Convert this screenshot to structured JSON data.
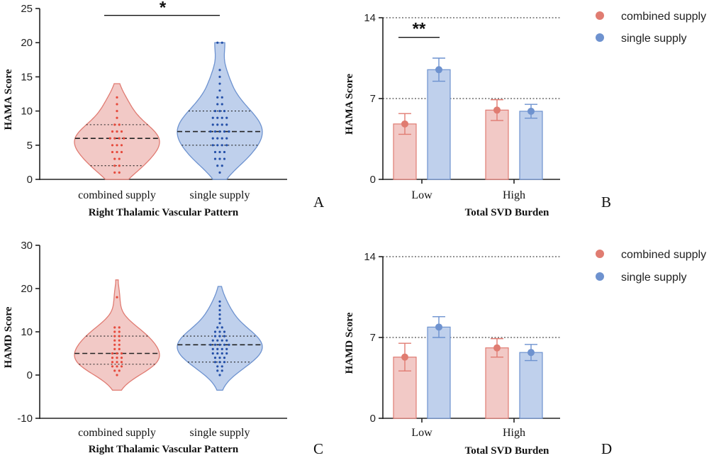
{
  "colors": {
    "combined_fill": "#f2c9c6",
    "combined_stroke": "#e07b72",
    "combined_dot": "#e64a3c",
    "combined_marker": "#e07c71",
    "single_fill": "#bfd0ec",
    "single_stroke": "#6d92cf",
    "single_dot": "#2550a8",
    "single_marker": "#6e92cf"
  },
  "legend_icon": "circle-marker",
  "chart_data": [
    {
      "panel": "A",
      "type": "violin",
      "xlabel": "Right Thalamic Vascular Pattern",
      "ylabel": "HAMA Score",
      "ylim": [
        0,
        25
      ],
      "yticks": [
        "0",
        "5",
        "10",
        "15",
        "20",
        "25"
      ],
      "categories": [
        "combined supply",
        "single supply"
      ],
      "series": [
        {
          "name": "combined supply",
          "range": [
            0,
            14
          ],
          "median": 6,
          "q1": 2,
          "q3": 8,
          "points": [
            1,
            1,
            2,
            2,
            3,
            3,
            4,
            4,
            4,
            5,
            5,
            5,
            6,
            6,
            6,
            6,
            7,
            7,
            7,
            8,
            8,
            9,
            10,
            11,
            12
          ]
        },
        {
          "name": "single supply",
          "range": [
            0,
            20
          ],
          "median": 7,
          "q1": 5,
          "q3": 10,
          "points": [
            1,
            2,
            2,
            3,
            3,
            3,
            4,
            4,
            4,
            5,
            5,
            5,
            5,
            6,
            6,
            6,
            6,
            7,
            7,
            7,
            7,
            7,
            8,
            8,
            8,
            8,
            9,
            9,
            9,
            9,
            10,
            10,
            10,
            11,
            11,
            12,
            12,
            13,
            14,
            15,
            16,
            20,
            20
          ]
        }
      ],
      "significance": {
        "label": "*",
        "between": [
          "combined supply",
          "single supply"
        ],
        "y": 24
      }
    },
    {
      "panel": "B",
      "type": "bar",
      "xlabel": "Total SVD Burden",
      "ylabel": "HAMA Score",
      "ylim": [
        0,
        14
      ],
      "yticks": [
        "0",
        "7",
        "14"
      ],
      "reference_lines": [
        7,
        14
      ],
      "categories": [
        "Low",
        "High"
      ],
      "series": [
        {
          "name": "combined supply",
          "values": [
            4.8,
            6.0
          ],
          "errors": [
            0.9,
            0.9
          ]
        },
        {
          "name": "single supply",
          "values": [
            9.5,
            5.9
          ],
          "errors": [
            1.0,
            0.6
          ]
        }
      ],
      "significance": {
        "label": "**",
        "category": "Low",
        "y": 12.3
      },
      "legend": [
        "combined supply",
        "single supply"
      ]
    },
    {
      "panel": "C",
      "type": "violin",
      "xlabel": "Right Thalamic Vascular Pattern",
      "ylabel": "HAMD Score",
      "ylim": [
        -10,
        30
      ],
      "yticks": [
        "-10",
        "0",
        "10",
        "20",
        "30"
      ],
      "categories": [
        "combined supply",
        "single supply"
      ],
      "series": [
        {
          "name": "combined supply",
          "range": [
            -3.5,
            22
          ],
          "median": 5,
          "q1": 2.5,
          "q3": 9,
          "points": [
            0,
            1,
            1,
            2,
            2,
            2,
            3,
            3,
            3,
            4,
            4,
            4,
            5,
            5,
            5,
            6,
            6,
            7,
            7,
            8,
            8,
            9,
            9,
            10,
            10,
            11,
            11,
            18
          ]
        },
        {
          "name": "single supply",
          "range": [
            -3.5,
            20.5
          ],
          "median": 7,
          "q1": 3,
          "q3": 9,
          "points": [
            0,
            1,
            1,
            2,
            2,
            3,
            3,
            3,
            4,
            4,
            4,
            5,
            5,
            5,
            5,
            6,
            6,
            6,
            6,
            7,
            7,
            7,
            7,
            7,
            8,
            8,
            8,
            8,
            9,
            9,
            9,
            10,
            10,
            10,
            11,
            11,
            12,
            13,
            14,
            15,
            16,
            17
          ]
        }
      ]
    },
    {
      "panel": "D",
      "type": "bar",
      "xlabel": "Total SVD Burden",
      "ylabel": "HAMD Score",
      "ylim": [
        0,
        14
      ],
      "yticks": [
        "0",
        "7",
        "14"
      ],
      "reference_lines": [
        7,
        14
      ],
      "categories": [
        "Low",
        "High"
      ],
      "series": [
        {
          "name": "combined supply",
          "values": [
            5.3,
            6.1
          ],
          "errors": [
            1.2,
            0.8
          ]
        },
        {
          "name": "single supply",
          "values": [
            7.9,
            5.7
          ],
          "errors": [
            0.9,
            0.7
          ]
        }
      ],
      "legend": [
        "combined supply",
        "single supply"
      ]
    }
  ]
}
